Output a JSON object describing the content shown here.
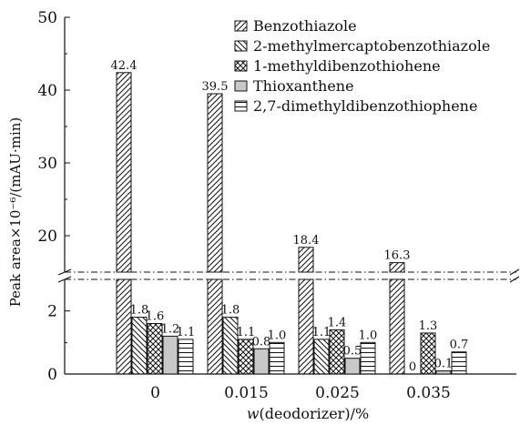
{
  "chart_data": {
    "type": "bar",
    "categories": [
      "0",
      "0.015",
      "0.025",
      "0.035"
    ],
    "xlabel": "w(deodorizer)/%",
    "ylabel": "Peak area×10⁻⁶/(mAU·min)",
    "axis_break": true,
    "ylim_lower": [
      0,
      3
    ],
    "ylim_upper": [
      15,
      50
    ],
    "yticks_lower": [
      0,
      2
    ],
    "yticks_upper": [
      20,
      30,
      40,
      50
    ],
    "legend_position": "top-right",
    "series": [
      {
        "name": "Benzothiazole",
        "pattern": "hatch-diagonal-right",
        "values": [
          42.4,
          39.5,
          18.4,
          16.3
        ],
        "labels": [
          "42.4",
          "39.5",
          "18.4",
          "16.3"
        ]
      },
      {
        "name": "2-methylmercaptobenzothiazole",
        "pattern": "hatch-diagonal-left",
        "values": [
          1.8,
          1.8,
          1.1,
          0
        ],
        "labels": [
          "1.8",
          "1.8",
          "1.1",
          "0"
        ]
      },
      {
        "name": "1-methyldibenzothiohene",
        "pattern": "crosshatch",
        "values": [
          1.6,
          1.1,
          1.4,
          1.3
        ],
        "labels": [
          "1.6",
          "1.1",
          "1.4",
          "1.3"
        ]
      },
      {
        "name": "Thioxanthene",
        "pattern": "solid-gray",
        "values": [
          1.2,
          0.8,
          0.5,
          0.1
        ],
        "labels": [
          "1.2",
          "0.8",
          "0.5",
          "0.1"
        ]
      },
      {
        "name": "2,7-dimethyldibenzothiophene",
        "pattern": "hatch-horizontal",
        "values": [
          1.1,
          1.0,
          1.0,
          0.7
        ],
        "labels": [
          "1.1",
          "1.0",
          "1.0",
          "0.7"
        ]
      }
    ],
    "colors": {
      "gray_fill": "#c8c8c8",
      "line": "#111111"
    }
  }
}
